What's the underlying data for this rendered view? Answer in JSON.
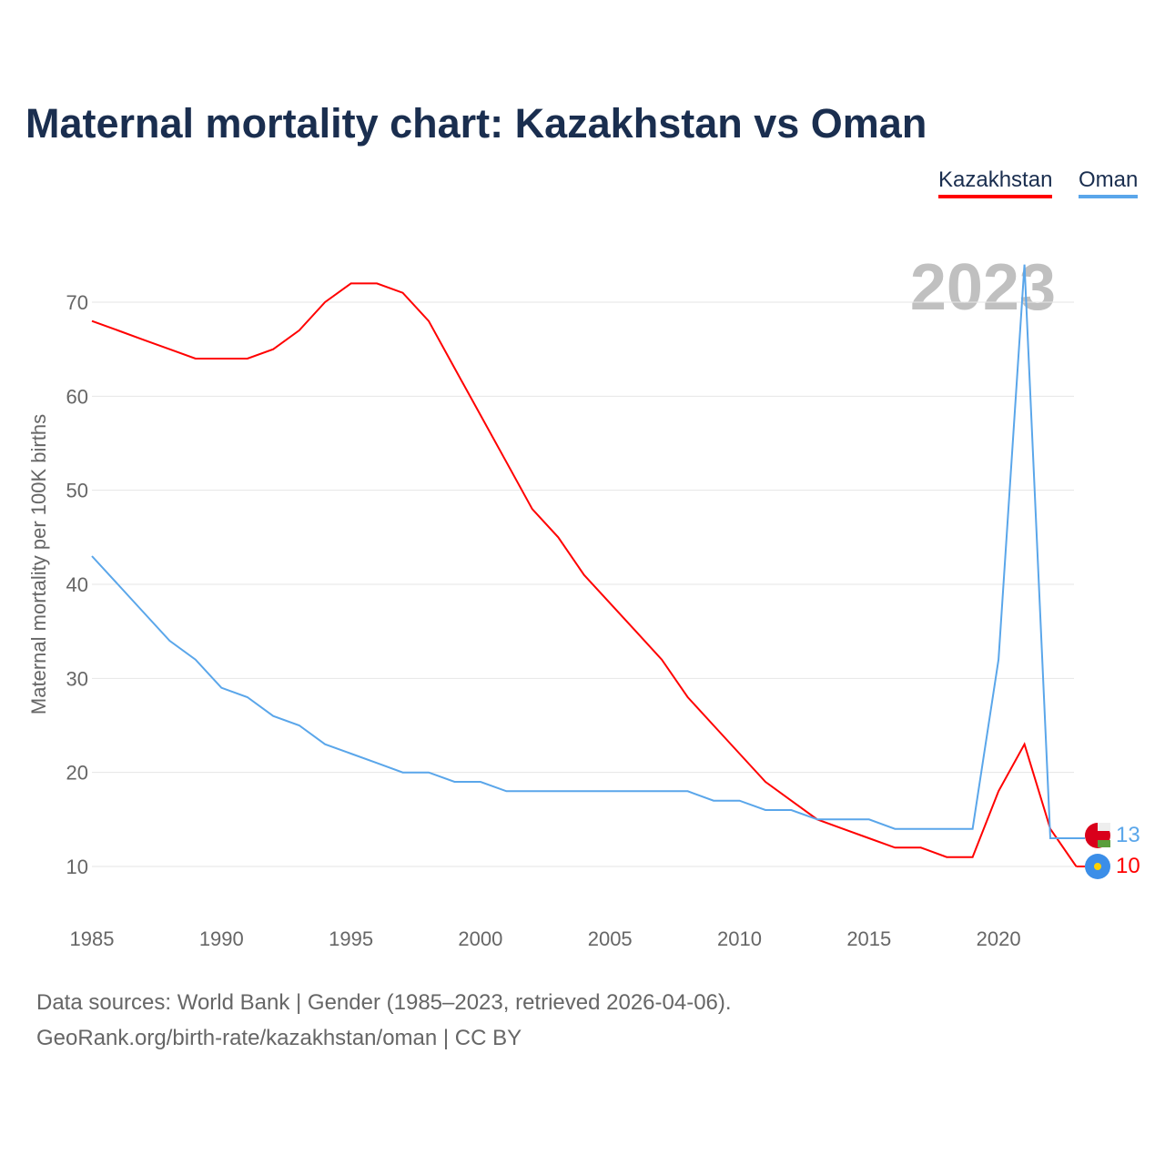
{
  "chart_data": {
    "type": "line",
    "title": "Maternal mortality chart: Kazakhstan vs Oman",
    "ylabel": "Maternal mortality per 100K births",
    "xlabel": "",
    "year_label": "2023",
    "x": [
      1985,
      1986,
      1987,
      1988,
      1989,
      1990,
      1991,
      1992,
      1993,
      1994,
      1995,
      1996,
      1997,
      1998,
      1999,
      2000,
      2001,
      2002,
      2003,
      2004,
      2005,
      2006,
      2007,
      2008,
      2009,
      2010,
      2011,
      2012,
      2013,
      2014,
      2015,
      2016,
      2017,
      2018,
      2019,
      2020,
      2021,
      2022,
      2023
    ],
    "series": [
      {
        "name": "Kazakhstan",
        "color": "#ff0000",
        "end_label": "10",
        "values": [
          68,
          67,
          66,
          65,
          64,
          64,
          64,
          65,
          67,
          70,
          72,
          72,
          71,
          68,
          63,
          58,
          53,
          48,
          45,
          41,
          38,
          35,
          32,
          28,
          25,
          22,
          19,
          17,
          15,
          14,
          13,
          12,
          12,
          11,
          11,
          18,
          23,
          14,
          10
        ]
      },
      {
        "name": "Oman",
        "color": "#5aa6ea",
        "end_label": "13",
        "values": [
          43,
          40,
          37,
          34,
          32,
          29,
          28,
          26,
          25,
          23,
          22,
          21,
          20,
          20,
          19,
          19,
          18,
          18,
          18,
          18,
          18,
          18,
          18,
          18,
          17,
          17,
          16,
          16,
          15,
          15,
          15,
          14,
          14,
          14,
          14,
          32,
          74,
          13,
          13
        ]
      }
    ],
    "xticks": [
      "1985",
      "1990",
      "1995",
      "2000",
      "2005",
      "2010",
      "2015",
      "2020"
    ],
    "yticks": [
      "10",
      "20",
      "30",
      "40",
      "50",
      "60",
      "70"
    ],
    "xlim": [
      1985,
      2023
    ],
    "ylim": [
      5,
      75
    ],
    "grid": true,
    "legend_position": "top-right"
  },
  "footer": {
    "line1": "Data sources: World Bank | Gender (1985–2023, retrieved 2026-04-06).",
    "line2": "GeoRank.org/birth-rate/kazakhstan/oman | CC BY"
  }
}
